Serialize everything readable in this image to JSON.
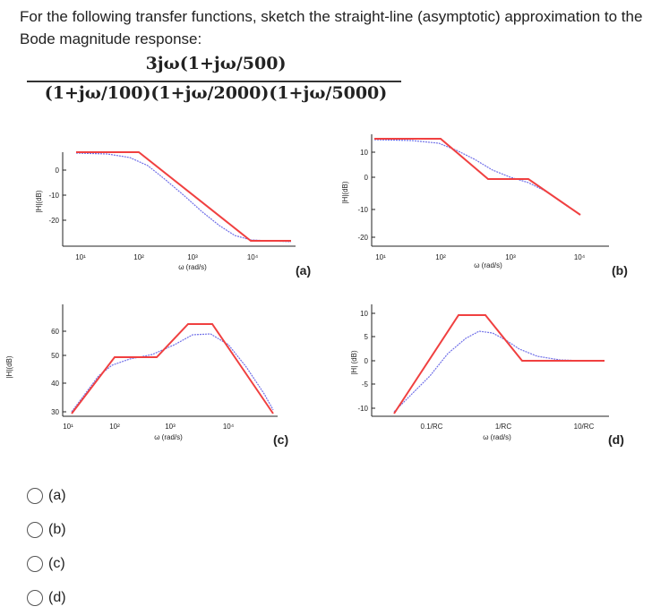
{
  "question": {
    "text": "For the following transfer functions, sketch the straight-line (asymptotic) approximation to the Bode magnitude response:",
    "formula_numerator": "3jω(1+jω/500)",
    "formula_denominator": "(1+jω/100)(1+jω/2000)(1+jω/5000)"
  },
  "plots": [
    {
      "id": "a",
      "label": "(a)",
      "ylabel": "|H|(dB)",
      "xlabel": "ω (rad/s)",
      "y_ticks": [
        "0",
        "-10",
        "-20"
      ],
      "x_ticks": [
        "10¹",
        "10²",
        "10³",
        "10⁴"
      ]
    },
    {
      "id": "b",
      "label": "(b)",
      "ylabel": "|H|(dB)",
      "xlabel": "ω (rad/s)",
      "y_ticks": [
        "10",
        "0",
        "-10",
        "-20"
      ],
      "x_ticks": [
        "10¹",
        "10²",
        "10³",
        "10⁴"
      ]
    },
    {
      "id": "c",
      "label": "(c)",
      "ylabel": "|H|(dB)",
      "xlabel": "ω (rad/s)",
      "y_ticks": [
        "60",
        "50",
        "40",
        "30"
      ],
      "x_ticks": [
        "10¹",
        "10²",
        "10³",
        "10⁴"
      ]
    },
    {
      "id": "d",
      "label": "(d)",
      "ylabel": "|H| (dB)",
      "xlabel": "ω (rad/s)",
      "y_ticks": [
        "10",
        "5",
        "0",
        "-5",
        "-10"
      ],
      "x_ticks": [
        "0.1/RC",
        "1/RC",
        "10/RC"
      ]
    }
  ],
  "choices": [
    "(a)",
    "(b)",
    "(c)",
    "(d)"
  ],
  "colors": {
    "asymptote": "#f04040",
    "actual": "#7070e8",
    "axis": "#222222"
  }
}
